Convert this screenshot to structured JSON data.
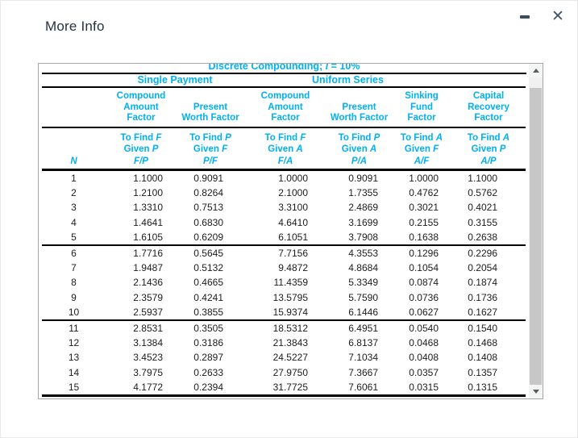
{
  "window": {
    "title": "More Info"
  },
  "icons": {
    "close": "✕"
  },
  "colors": {
    "accent_cyan": "#00b0f0",
    "title_navy": "#233245",
    "rule_black": "#000000"
  },
  "table": {
    "title_prefix": "Discrete Compounding; ",
    "title_var": "i",
    "title_suffix": " = 10%",
    "group_single": "Single Payment",
    "group_uniform": "Uniform Series",
    "n_label": "N",
    "columns": [
      {
        "name1": "Compound",
        "name2": "Amount",
        "name3": "Factor",
        "find": "To Find ",
        "find_var": "F",
        "given": "Given ",
        "given_var": "P",
        "ratio": "F/P"
      },
      {
        "name1": "",
        "name2": "Present",
        "name3": "Worth Factor",
        "find": "To Find ",
        "find_var": "P",
        "given": "Given ",
        "given_var": "F",
        "ratio": "P/F"
      },
      {
        "name1": "Compound",
        "name2": "Amount",
        "name3": "Factor",
        "find": "To Find ",
        "find_var": "F",
        "given": "Given ",
        "given_var": "A",
        "ratio": "F/A"
      },
      {
        "name1": "",
        "name2": "Present",
        "name3": "Worth Factor",
        "find": "To Find ",
        "find_var": "P",
        "given": "Given ",
        "given_var": "A",
        "ratio": "P/A"
      },
      {
        "name1": "Sinking",
        "name2": "Fund",
        "name3": "Factor",
        "find": "To Find ",
        "find_var": "A",
        "given": "Given ",
        "given_var": "F",
        "ratio": "A/F"
      },
      {
        "name1": "Capital",
        "name2": "Recovery",
        "name3": "Factor",
        "find": "To Find ",
        "find_var": "A",
        "given": "Given ",
        "given_var": "P",
        "ratio": "A/P"
      }
    ],
    "rows": [
      [
        "1",
        "1.1000",
        "0.9091",
        "1.0000",
        "0.9091",
        "1.0000",
        "1.1000"
      ],
      [
        "2",
        "1.2100",
        "0.8264",
        "2.1000",
        "1.7355",
        "0.4762",
        "0.5762"
      ],
      [
        "3",
        "1.3310",
        "0.7513",
        "3.3100",
        "2.4869",
        "0.3021",
        "0.4021"
      ],
      [
        "4",
        "1.4641",
        "0.6830",
        "4.6410",
        "3.1699",
        "0.2155",
        "0.3155"
      ],
      [
        "5",
        "1.6105",
        "0.6209",
        "6.1051",
        "3.7908",
        "0.1638",
        "0.2638"
      ],
      [
        "6",
        "1.7716",
        "0.5645",
        "7.7156",
        "4.3553",
        "0.1296",
        "0.2296"
      ],
      [
        "7",
        "1.9487",
        "0.5132",
        "9.4872",
        "4.8684",
        "0.1054",
        "0.2054"
      ],
      [
        "8",
        "2.1436",
        "0.4665",
        "11.4359",
        "5.3349",
        "0.0874",
        "0.1874"
      ],
      [
        "9",
        "2.3579",
        "0.4241",
        "13.5795",
        "5.7590",
        "0.0736",
        "0.1736"
      ],
      [
        "10",
        "2.5937",
        "0.3855",
        "15.9374",
        "6.1446",
        "0.0627",
        "0.1627"
      ],
      [
        "11",
        "2.8531",
        "0.3505",
        "18.5312",
        "6.4951",
        "0.0540",
        "0.1540"
      ],
      [
        "12",
        "3.1384",
        "0.3186",
        "21.3843",
        "6.8137",
        "0.0468",
        "0.1468"
      ],
      [
        "13",
        "3.4523",
        "0.2897",
        "24.5227",
        "7.1034",
        "0.0408",
        "0.1408"
      ],
      [
        "14",
        "3.7975",
        "0.2633",
        "27.9750",
        "7.3667",
        "0.0357",
        "0.1357"
      ],
      [
        "15",
        "4.1772",
        "0.2394",
        "31.7725",
        "7.6061",
        "0.0315",
        "0.1315"
      ]
    ]
  }
}
